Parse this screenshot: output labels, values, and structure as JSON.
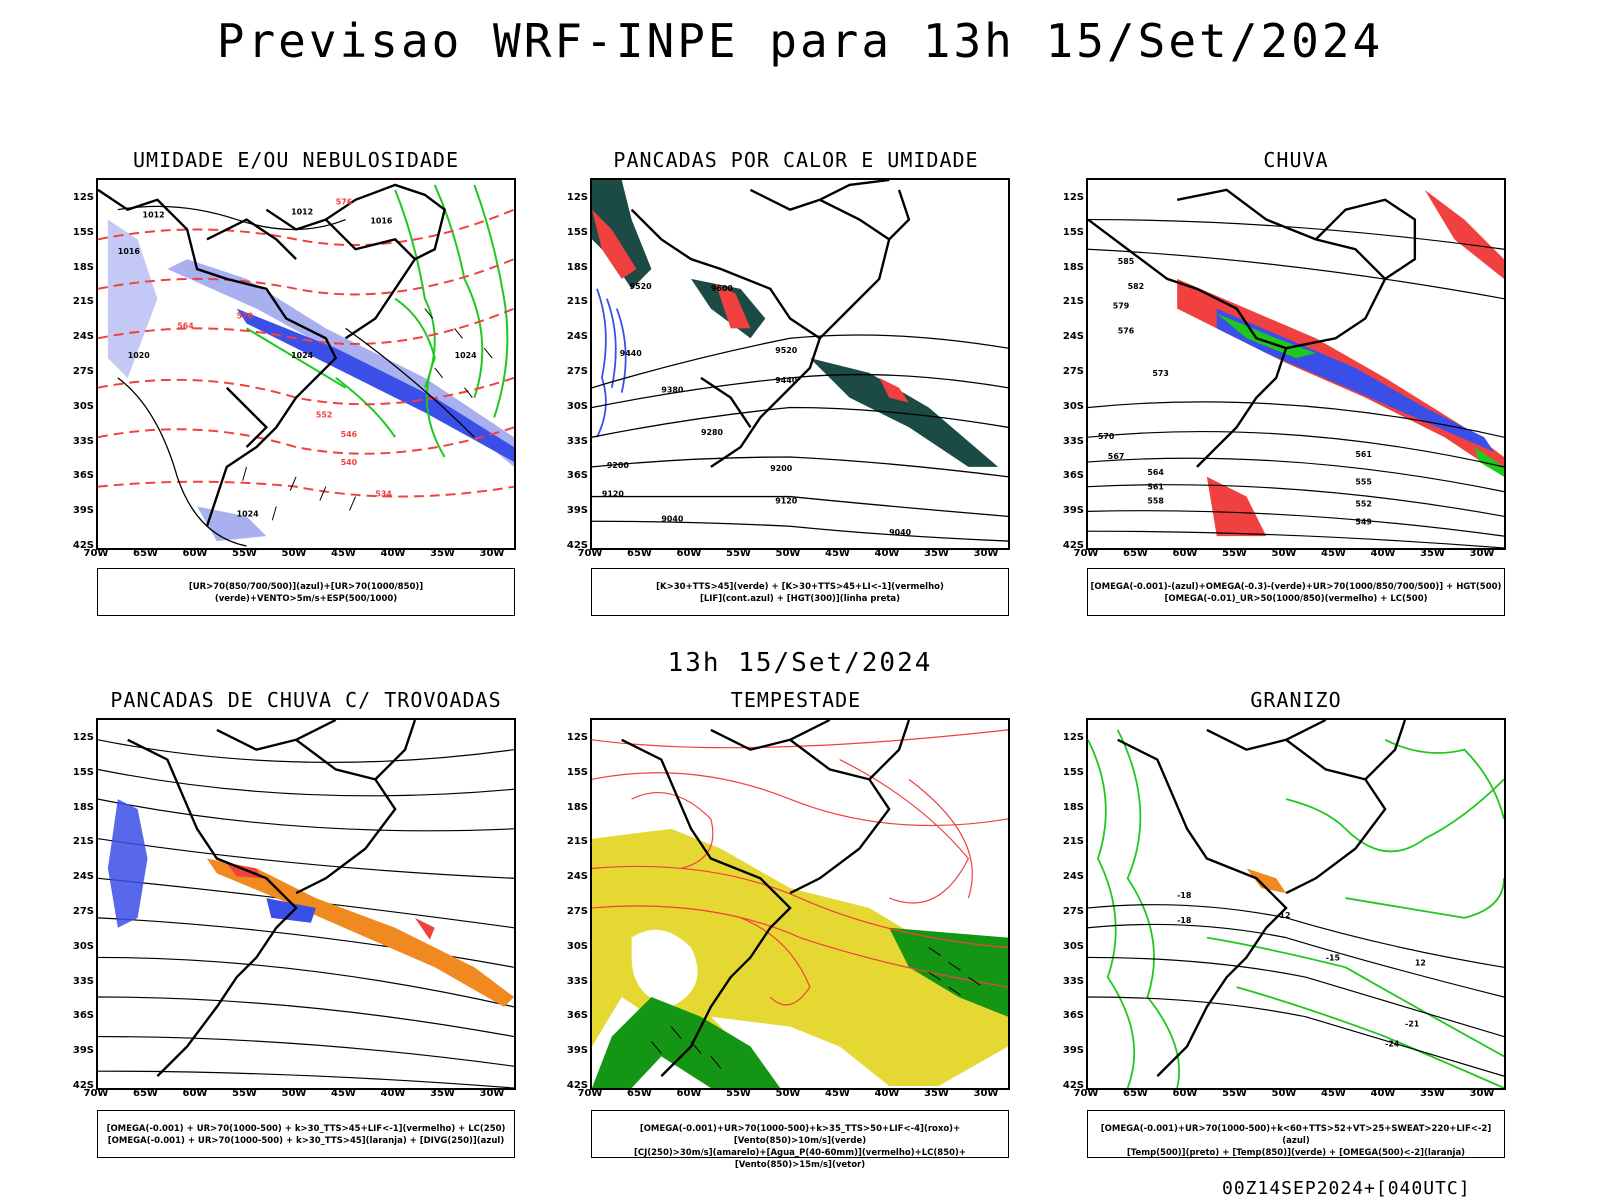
{
  "title": "Previsao WRF-INPE  para 13h 15/Set/2024",
  "mid_title": "13h 15/Set/2024",
  "footer": "00Z14SEP2024+[040UTC]",
  "axes": {
    "lat_labels": [
      "12S",
      "15S",
      "18S",
      "21S",
      "24S",
      "27S",
      "30S",
      "33S",
      "36S",
      "39S",
      "42S"
    ],
    "lon_labels": [
      "70W",
      "65W",
      "60W",
      "55W",
      "50W",
      "45W",
      "40W",
      "35W",
      "30W"
    ]
  },
  "colors": {
    "blue": "#3a4ee8",
    "light_blue": "#a9b0f0",
    "green": "#1ec81e",
    "red": "#f04040",
    "orange": "#f08a20",
    "yellow": "#e6d832",
    "dark_teal": "#1c4a44",
    "dark_green": "#149614"
  },
  "panels": [
    {
      "title": "UMIDADE E/OU NEBULOSIDADE",
      "legend_line1": "[UR>70(850/700/500)](azul)+[UR>70(1000/850)](verde)+VENTO>5m/s+ESP(500/1000)",
      "legend_line2": "",
      "contour_labels": [
        "1012",
        "1016",
        "1020",
        "1024",
        "576",
        "570",
        "564",
        "558",
        "552",
        "546",
        "540",
        "534"
      ]
    },
    {
      "title": "PANCADAS POR CALOR E UMIDADE",
      "legend_line1": "[K>30+TTS>45](verde) + [K>30+TTS>45+LI<-1](vermelho)",
      "legend_line2": "[LIF](cont.azul) + [HGT(300)](linha preta)",
      "contour_labels": [
        "9600",
        "9520",
        "9440",
        "9380",
        "9280",
        "9200",
        "9120",
        "9040"
      ]
    },
    {
      "title": "CHUVA",
      "legend_line1": "[OMEGA(-0.001)-(azul)+OMEGA(-0.3)-(verde)+UR>70(1000/850/700/500)] + HGT(500)",
      "legend_line2": "[OMEGA(-0.01)_UR>50(1000/850)(vermelho) + LC(500)",
      "contour_labels": [
        "585",
        "582",
        "579",
        "576",
        "573",
        "570",
        "567",
        "564",
        "561",
        "558",
        "555",
        "552",
        "549"
      ]
    },
    {
      "title": "PANCADAS DE CHUVA C/ TROVOADAS",
      "legend_line1": "[OMEGA(-0.001) + UR>70(1000-500) + k>30_TTS>45+LIF<-1](vermelho) + LC(250)",
      "legend_line2": "[OMEGA(-0.001) + UR>70(1000-500) + k>30_TTS>45](laranja) + [DIVG(250)](azul)",
      "contour_labels": []
    },
    {
      "title": "TEMPESTADE",
      "legend_line1": "[OMEGA(-0.001)+UR>70(1000-500)+k>35_TTS>50+LIF<-4](roxo)+[Vento(850)>10m/s](verde)",
      "legend_line2": "[CJ(250)>30m/s](amarelo)+[Agua_P(40-60mm)](vermelho)+LC(850)+[Vento(850)>15m/s](vetor)",
      "contour_labels": []
    },
    {
      "title": "GRANIZO",
      "legend_line1": "[OMEGA(-0.001)+UR>70(1000-500)+k<60+TTS>52+VT>25+SWEAT>220+LIF<-2](azul)",
      "legend_line2": "[Temp(500)](preto) + [Temp(850)](verde) + [OMEGA(500)<-2](laranja)",
      "contour_labels": [
        "-12",
        "-15",
        "-18",
        "-21",
        "-24",
        "12"
      ]
    }
  ]
}
